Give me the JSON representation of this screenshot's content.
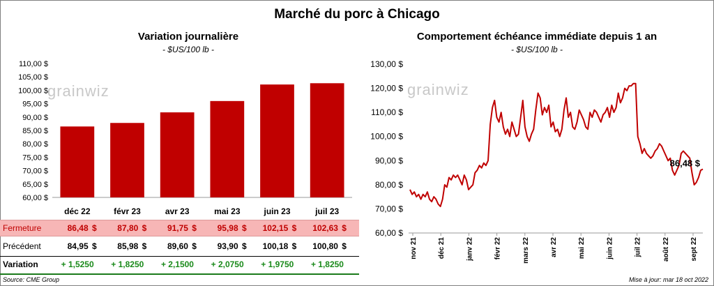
{
  "title": "Marché du porc à Chicago",
  "chart_data": [
    {
      "type": "bar",
      "title": "Variation  journalière",
      "subtitle": "- $US/100 lb -",
      "categories": [
        "déc 22",
        "févr 23",
        "avr 23",
        "mai 23",
        "juin 23",
        "juil 23"
      ],
      "values": [
        86.48,
        87.8,
        91.75,
        95.98,
        102.15,
        102.63
      ],
      "ylim": [
        60,
        110
      ],
      "yticks": [
        "60,00 $",
        "65,00 $",
        "70,00 $",
        "75,00 $",
        "80,00 $",
        "85,00 $",
        "90,00 $",
        "95,00 $",
        "100,00 $",
        "105,00 $",
        "110,00 $"
      ],
      "bar_color": "#c00000"
    },
    {
      "type": "line",
      "title": "Comportement  échéance immédiate depuis 1 an",
      "subtitle": "- $US/100 lb -",
      "ylim": [
        60,
        130
      ],
      "yticks": [
        "60,00 $",
        "70,00 $",
        "80,00 $",
        "90,00 $",
        "100,00 $",
        "110,00 $",
        "120,00 $",
        "130,00 $"
      ],
      "xticks": [
        "nov 21",
        "déc 21",
        "janv 22",
        "févr 22",
        "mars 22",
        "avr 22",
        "mai 22",
        "juin 22",
        "juil 22",
        "août 22",
        "sept 22"
      ],
      "last_value_label": "86,48 $",
      "line_color": "#c00000",
      "series": [
        {
          "values": [
            78,
            76,
            77,
            75,
            76,
            74,
            76,
            75,
            77,
            74,
            73,
            75,
            74,
            72,
            71,
            74,
            80,
            79,
            83,
            82,
            84,
            83,
            84,
            82,
            80,
            84,
            82,
            78,
            79,
            80,
            85,
            86,
            88,
            87,
            89,
            88,
            90,
            105,
            112,
            115,
            108,
            106,
            110,
            104,
            101,
            103,
            100,
            106,
            103,
            100,
            101,
            108,
            115,
            104,
            100,
            98,
            101,
            103,
            111,
            118,
            116,
            109,
            112,
            110,
            113,
            104,
            106,
            102,
            103,
            100,
            103,
            111,
            116,
            108,
            110,
            104,
            103,
            106,
            111,
            109,
            107,
            104,
            103,
            110,
            108,
            111,
            110,
            108,
            106,
            109,
            110,
            112,
            108,
            113,
            110,
            112,
            118,
            114,
            116,
            120,
            119,
            121,
            121,
            122,
            122,
            100,
            97,
            93,
            95,
            93,
            92,
            91,
            92,
            94,
            95,
            97,
            96,
            94,
            92,
            90,
            91,
            86,
            84,
            86,
            88,
            93,
            94,
            93,
            92,
            91,
            85,
            80,
            81,
            83,
            86,
            86.48
          ]
        }
      ]
    }
  ],
  "table": {
    "rows": [
      {
        "label": "Fermeture",
        "values": [
          "86,48",
          "87,80",
          "91,75",
          "95,98",
          "102,15",
          "102,63"
        ],
        "currency": "$"
      },
      {
        "label": "Précédent",
        "values": [
          "84,95",
          "85,98",
          "89,60",
          "93,90",
          "100,18",
          "100,80"
        ],
        "currency": "$"
      },
      {
        "label": "Variation",
        "values": [
          "+ 1,5250",
          "+ 1,8250",
          "+ 2,1500",
          "+ 2,0750",
          "+ 1,9750",
          "+ 1,8250"
        ]
      }
    ]
  },
  "watermark": "grainwiz",
  "footer": {
    "source": "Source: CME Group",
    "updated": "Mise à jour: mar 18 oct 2022"
  }
}
